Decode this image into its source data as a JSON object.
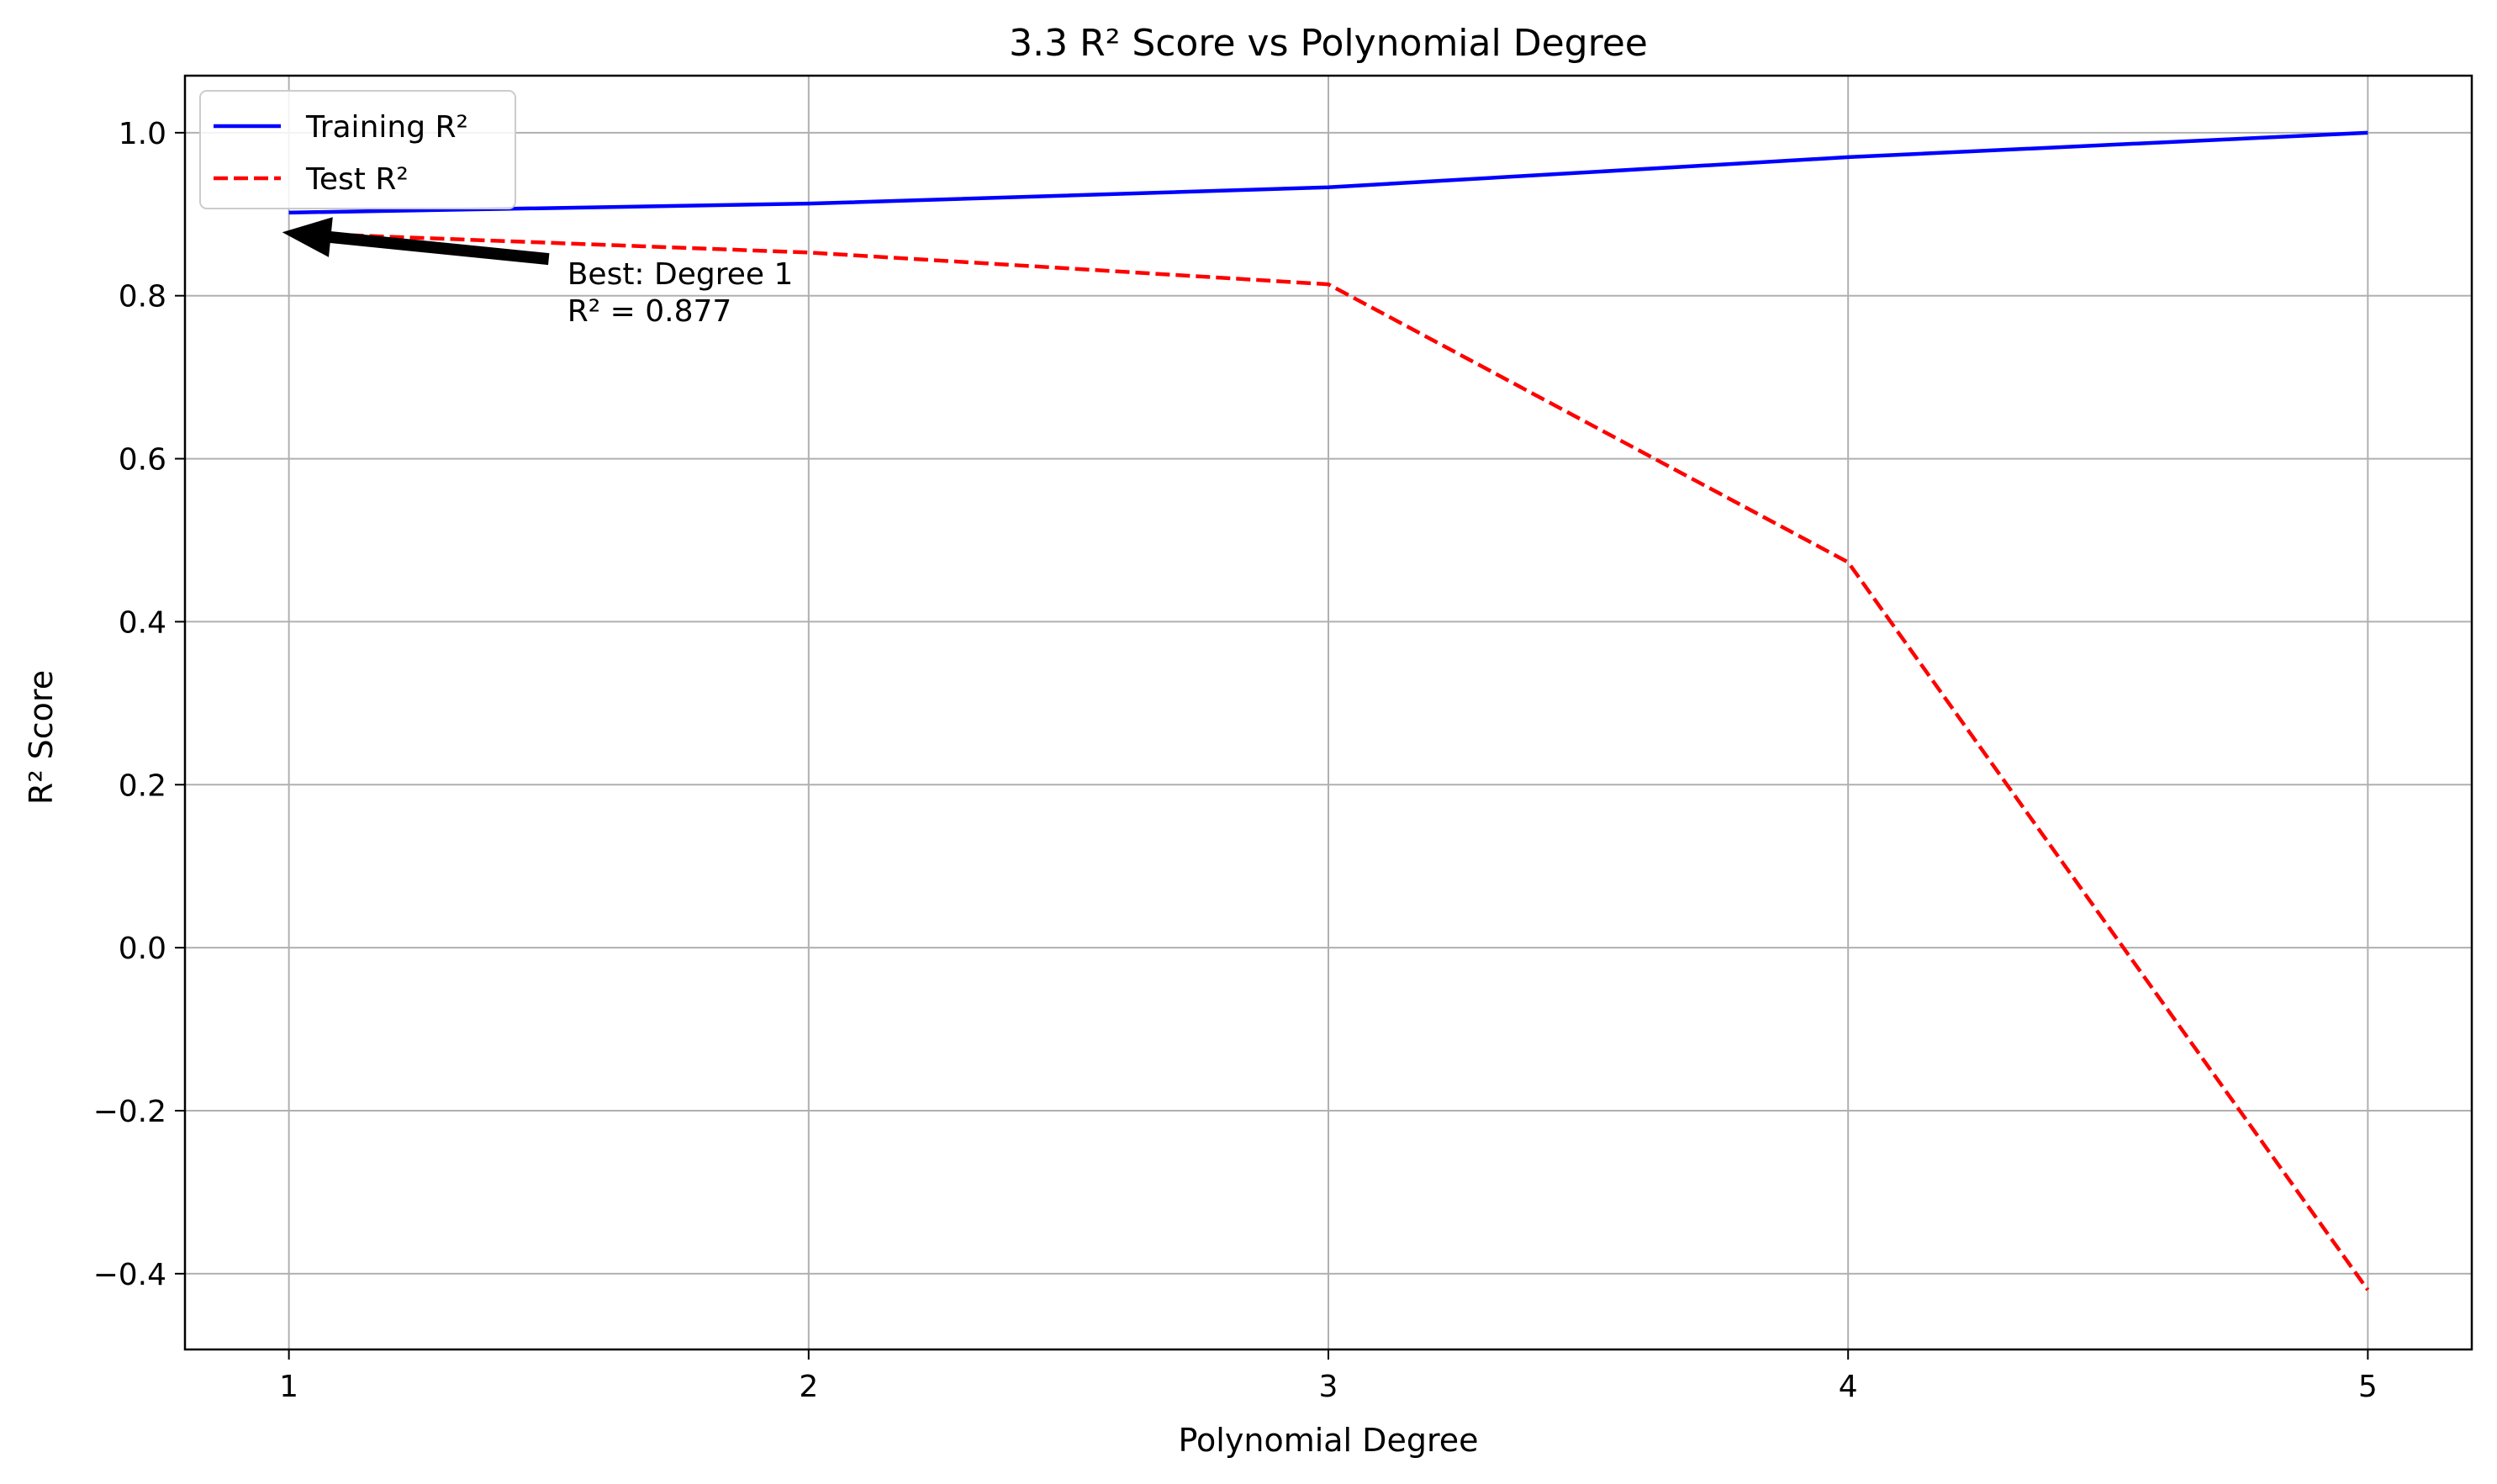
{
  "chart_data": {
    "type": "line",
    "title": "3.3 R² Score vs Polynomial Degree",
    "xlabel": "Polynomial Degree",
    "ylabel": "R² Score",
    "x": [
      1,
      2,
      3,
      4,
      5
    ],
    "xlim": [
      0.8,
      5.2
    ],
    "ylim": [
      -0.493,
      1.07
    ],
    "xticks": [
      1,
      2,
      3,
      4,
      5
    ],
    "xtick_labels": [
      "1",
      "2",
      "3",
      "4",
      "5"
    ],
    "yticks": [
      -0.4,
      -0.2,
      0.0,
      0.2,
      0.4,
      0.6,
      0.8,
      1.0
    ],
    "ytick_labels": [
      "−0.4",
      "−0.2",
      "0.0",
      "0.2",
      "0.4",
      "0.6",
      "0.8",
      "1.0"
    ],
    "grid": true,
    "legend_position": "top-left",
    "series": [
      {
        "name": "Training R²",
        "values": [
          0.902,
          0.913,
          0.933,
          0.97,
          1.0
        ],
        "color": "#0000ff",
        "style": "solid"
      },
      {
        "name": "Test R²",
        "values": [
          0.877,
          0.853,
          0.814,
          0.473,
          -0.42
        ],
        "color": "#ff0000",
        "style": "dashed"
      }
    ],
    "annotation": {
      "lines": [
        "Best: Degree 1",
        "R² = 0.877"
      ],
      "point": {
        "x": 1,
        "y": 0.877
      },
      "text_anchor": {
        "x": 1.5,
        "y": 0.845
      }
    }
  }
}
